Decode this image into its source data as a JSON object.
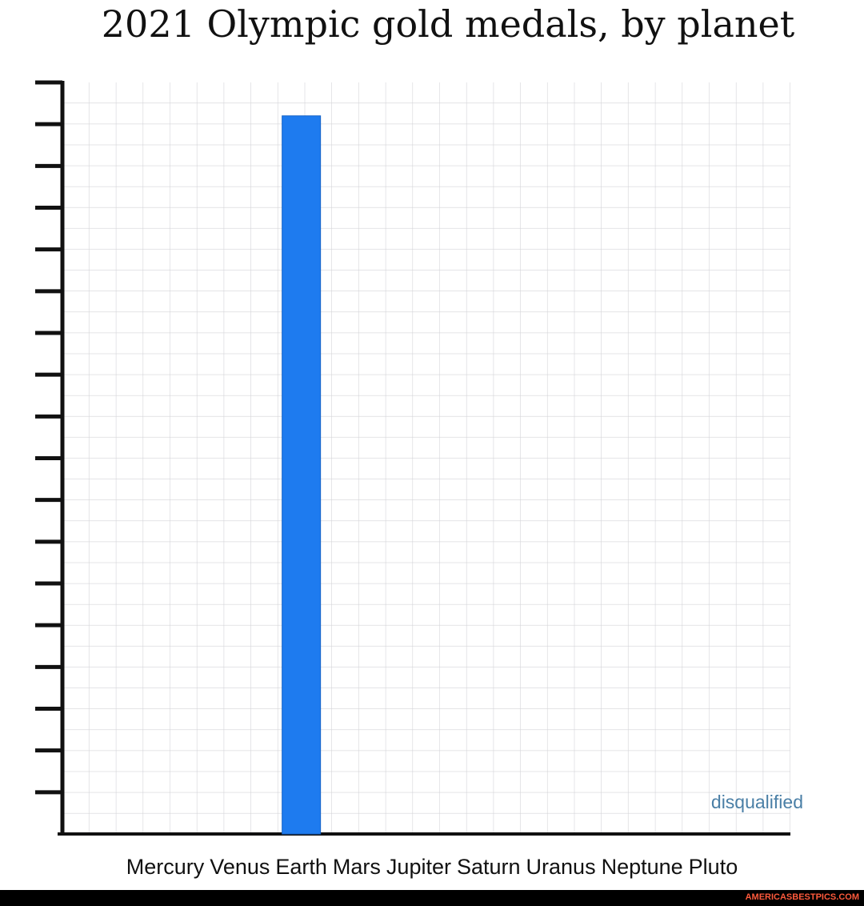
{
  "chart_data": {
    "type": "bar",
    "title": "2021 Olympic gold medals, by planet",
    "categories": [
      "Mercury",
      "Venus",
      "Earth",
      "Mars",
      "Jupiter",
      "Saturn",
      "Uranus",
      "Neptune",
      "Pluto"
    ],
    "values": [
      0,
      0,
      17.2,
      0,
      0,
      0,
      0,
      0,
      null
    ],
    "color": "#1e7bef",
    "ylim": [
      0,
      18
    ],
    "yticks": [
      1,
      2,
      3,
      4,
      5,
      6,
      7,
      8,
      9,
      10,
      11,
      12,
      13,
      14,
      15,
      16,
      17,
      18
    ],
    "annotation": "disqualified"
  },
  "watermark": "AMERICASBESTPICS.COM"
}
